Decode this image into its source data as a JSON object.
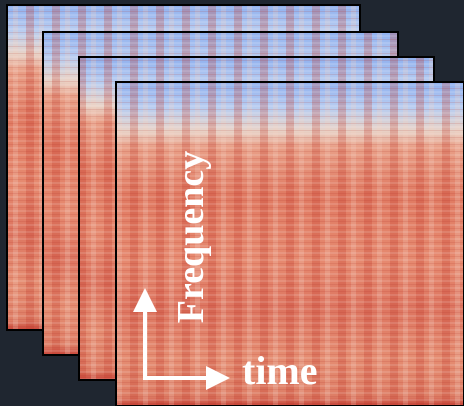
{
  "labels": {
    "y_axis": "Frequency",
    "x_axis": "time"
  }
}
